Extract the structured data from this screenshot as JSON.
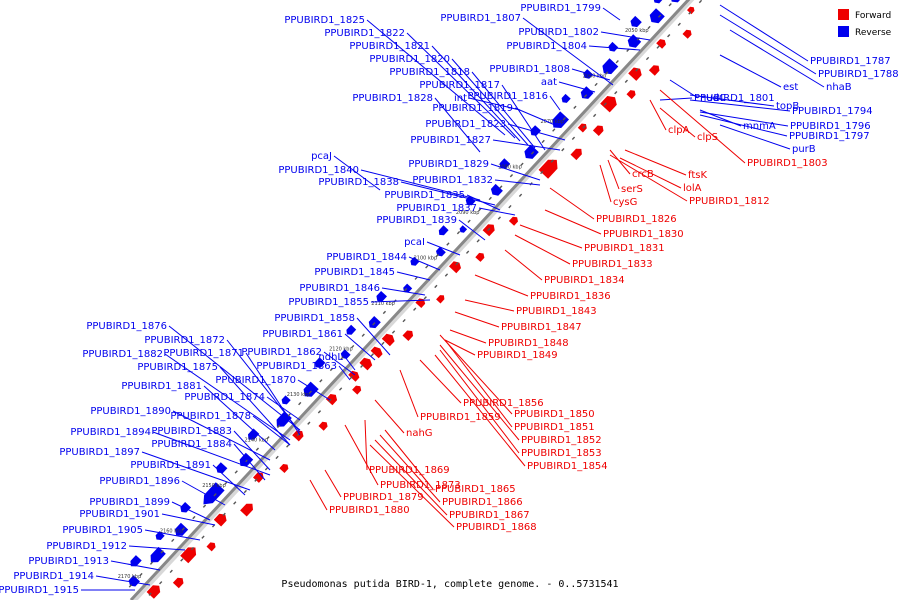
{
  "caption": "Pseudomonas putida BIRD-1, complete genome. - 0..5731541",
  "colors": {
    "forward": "#ee0000",
    "reverse": "#0000ee",
    "axis": "#888888"
  },
  "legend": [
    {
      "label": "Forward",
      "color": "#ee0000"
    },
    {
      "label": "Reverse",
      "color": "#0000ee"
    }
  ],
  "kbp_ticks": [
    "2050 kbp",
    "2060 kbp",
    "2070 kbp",
    "2080 kbp",
    "2090 kbp",
    "2100 kbp",
    "2110 kbp",
    "2120 kbp",
    "2130 kbp",
    "2140 kbp",
    "2150 kbp",
    "2160 kbp",
    "2170 kbp"
  ],
  "labels": {
    "upper_left": [
      "PPUBIRD1_1825",
      "PPUBIRD1_1822",
      "PPUBIRD1_1821",
      "PPUBIRD1_1820",
      "PPUBIRD1_1818",
      "PPUBIRD1_1817",
      "PPUBIRD1_1828",
      "int",
      "PPUBIRD1_1816",
      "PPUBIRD1_1819",
      "PPUBIRD1_1823",
      "PPUBIRD1_1827",
      "PPUBIRD1_1807",
      "PPUBIRD1_1799",
      "PPUBIRD1_1802",
      "PPUBIRD1_1804",
      "PPUBIRD1_1808",
      "aat",
      "PPUBIRD1_1829",
      "PPUBIRD1_1832",
      "pcaJ",
      "PPUBIRD1_1840",
      "PPUBIRD1_1838",
      "PPUBIRD1_1835",
      "PPUBIRD1_1837",
      "PPUBIRD1_1839",
      "pcaI",
      "PPUBIRD1_1844",
      "PPUBIRD1_1845",
      "PPUBIRD1_1846",
      "PPUBIRD1_1855",
      "PPUBIRD1_1858",
      "PPUBIRD1_1861",
      "ndhL",
      "PPUBIRD1_1862",
      "PPUBIRD1_1863",
      "PPUBIRD1_1876",
      "PPUBIRD1_1872",
      "PPUBIRD1_1882",
      "PPUBIRD1_1871",
      "PPUBIRD1_1875",
      "PPUBIRD1_1870",
      "PPUBIRD1_1881",
      "PPUBIRD1_1874",
      "PPUBIRD1_1890",
      "PPUBIRD1_1878",
      "PPUBIRD1_1883",
      "PPUBIRD1_1894",
      "PPUBIRD1_1884",
      "PPUBIRD1_1897",
      "PPUBIRD1_1891",
      "PPUBIRD1_1896",
      "PPUBIRD1_1899",
      "PPUBIRD1_1901",
      "PPUBIRD1_1905",
      "PPUBIRD1_1912",
      "PPUBIRD1_1913",
      "PPUBIRD1_1914",
      "PPUBIRD1_1915"
    ],
    "upper_right": [
      "PPUBIRD1_1787",
      "PPUBIRD1_1788",
      "nhaB",
      "est",
      "nudC",
      "PPUBIRD1_1801",
      "topB",
      "PPUBIRD1_1794",
      "mnmA",
      "PPUBIRD1_1796",
      "PPUBIRD1_1797",
      "purB"
    ],
    "lower_right": [
      "clpA",
      "clpS",
      "crcB",
      "ftsK",
      "serS",
      "lolA",
      "cysG",
      "PPUBIRD1_1812",
      "PPUBIRD1_1803",
      "PPUBIRD1_1826",
      "PPUBIRD1_1830",
      "PPUBIRD1_1831",
      "PPUBIRD1_1833",
      "PPUBIRD1_1834",
      "PPUBIRD1_1836",
      "PPUBIRD1_1843",
      "PPUBIRD1_1847",
      "PPUBIRD1_1848",
      "PPUBIRD1_1849",
      "PPUBIRD1_1856",
      "PPUBIRD1_1859",
      "PPUBIRD1_1850",
      "PPUBIRD1_1851",
      "nahG",
      "PPUBIRD1_1852",
      "PPUBIRD1_1853",
      "PPUBIRD1_1854",
      "PPUBIRD1_1869",
      "PPUBIRD1_1873",
      "PPUBIRD1_1865",
      "PPUBIRD1_1879",
      "PPUBIRD1_1866",
      "PPUBIRD1_1880",
      "PPUBIRD1_1867",
      "PPUBIRD1_1868"
    ]
  }
}
